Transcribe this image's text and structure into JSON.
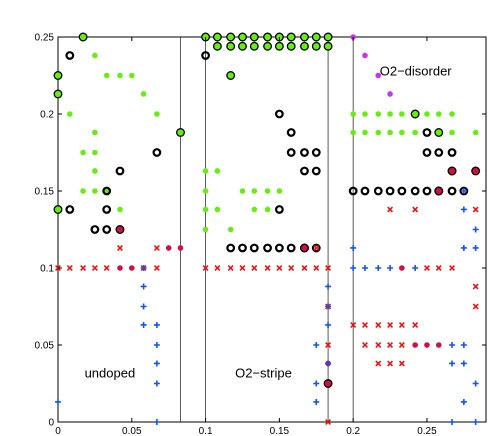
{
  "chart_data": {
    "type": "scatter",
    "title": "",
    "xlabel": "",
    "ylabel": "",
    "xlim": [
      0,
      0.29
    ],
    "ylim": [
      0,
      0.25
    ],
    "grid": false,
    "legend": "none",
    "x_ticks": [
      {
        "value": 0,
        "label": "0"
      },
      {
        "value": 0.05,
        "label": "0.05"
      },
      {
        "value": 0.1,
        "label": "0.1"
      },
      {
        "value": 0.15,
        "label": "0.15"
      },
      {
        "value": 0.2,
        "label": "0.2"
      },
      {
        "value": 0.25,
        "label": "0.25"
      }
    ],
    "y_ticks": [
      {
        "value": 0,
        "label": "0"
      },
      {
        "value": 0.05,
        "label": "0.05"
      },
      {
        "value": 0.1,
        "label": "0.1"
      },
      {
        "value": 0.15,
        "label": "0.15"
      },
      {
        "value": 0.2,
        "label": "0.2"
      },
      {
        "value": 0.25,
        "label": "0.25"
      }
    ],
    "vlines": [
      0.083,
      0.1,
      0.183,
      0.2
    ],
    "annotations": [
      {
        "text": "undoped",
        "x": 0.018,
        "y": 0.029
      },
      {
        "text": "O2−stripe",
        "x": 0.12,
        "y": 0.029
      },
      {
        "text": "O2−disorder",
        "x": 0.218,
        "y": 0.225
      }
    ],
    "colors": {
      "green": "#66ee11",
      "black": "#000000",
      "red": "#ee1111",
      "darkred": "#cc1144",
      "blue": "#1155ee",
      "magenta": "#cc33ee"
    },
    "series": [
      {
        "marker": "filled-circle",
        "color": "green",
        "outlined": true,
        "points": [
          [
            0,
            0.138
          ],
          [
            0,
            0.213
          ],
          [
            0,
            0.225
          ],
          [
            0.017,
            0.25
          ],
          [
            0.083,
            0.188
          ],
          [
            0.1,
            0.25
          ],
          [
            0.108,
            0.25
          ],
          [
            0.117,
            0.25
          ],
          [
            0.125,
            0.25
          ],
          [
            0.133,
            0.25
          ],
          [
            0.142,
            0.25
          ],
          [
            0.15,
            0.25
          ],
          [
            0.158,
            0.25
          ],
          [
            0.167,
            0.25
          ],
          [
            0.175,
            0.25
          ],
          [
            0.183,
            0.25
          ],
          [
            0.108,
            0.244
          ],
          [
            0.117,
            0.244
          ],
          [
            0.125,
            0.244
          ],
          [
            0.133,
            0.244
          ],
          [
            0.142,
            0.244
          ],
          [
            0.15,
            0.244
          ],
          [
            0.158,
            0.244
          ],
          [
            0.167,
            0.244
          ],
          [
            0.175,
            0.244
          ],
          [
            0.183,
            0.244
          ],
          [
            0.117,
            0.225
          ],
          [
            0.242,
            0.2
          ],
          [
            0.258,
            0.188
          ],
          [
            0.258,
            0.15
          ]
        ]
      },
      {
        "marker": "filled-circle",
        "color": "green",
        "outlined": false,
        "points": [
          [
            0.008,
            0.2
          ],
          [
            0.017,
            0.175
          ],
          [
            0.025,
            0.163
          ],
          [
            0.033,
            0.15
          ],
          [
            0.025,
            0.15
          ],
          [
            0.042,
            0.138
          ],
          [
            0.042,
            0.125
          ],
          [
            0.025,
            0.238
          ],
          [
            0.033,
            0.225
          ],
          [
            0.042,
            0.225
          ],
          [
            0.05,
            0.225
          ],
          [
            0.058,
            0.213
          ],
          [
            0.067,
            0.2
          ],
          [
            0.025,
            0.188
          ],
          [
            0.025,
            0.175
          ],
          [
            0.017,
            0.15
          ],
          [
            0.1,
            0.163
          ],
          [
            0.1,
            0.15
          ],
          [
            0.1,
            0.138
          ],
          [
            0.1,
            0.125
          ],
          [
            0.108,
            0.163
          ],
          [
            0.108,
            0.138
          ],
          [
            0.117,
            0.125
          ],
          [
            0.125,
            0.15
          ],
          [
            0.133,
            0.15
          ],
          [
            0.142,
            0.15
          ],
          [
            0.15,
            0.15
          ],
          [
            0.142,
            0.138
          ],
          [
            0.133,
            0.138
          ],
          [
            0.2,
            0.2
          ],
          [
            0.2,
            0.188
          ],
          [
            0.208,
            0.2
          ],
          [
            0.217,
            0.2
          ],
          [
            0.225,
            0.2
          ],
          [
            0.233,
            0.2
          ],
          [
            0.25,
            0.2
          ],
          [
            0.258,
            0.2
          ],
          [
            0.267,
            0.2
          ],
          [
            0.208,
            0.188
          ],
          [
            0.217,
            0.188
          ],
          [
            0.225,
            0.188
          ],
          [
            0.233,
            0.188
          ],
          [
            0.242,
            0.188
          ],
          [
            0.267,
            0.188
          ],
          [
            0.283,
            0.188
          ]
        ]
      },
      {
        "marker": "open-circle",
        "color": "black",
        "points": [
          [
            0.008,
            0.238
          ],
          [
            0.008,
            0.138
          ],
          [
            0.033,
            0.15
          ],
          [
            0.033,
            0.138
          ],
          [
            0.025,
            0.125
          ],
          [
            0.033,
            0.125
          ],
          [
            0.042,
            0.163
          ],
          [
            0.067,
            0.175
          ],
          [
            0.1,
            0.238
          ],
          [
            0.117,
            0.113
          ],
          [
            0.125,
            0.113
          ],
          [
            0.133,
            0.113
          ],
          [
            0.142,
            0.113
          ],
          [
            0.15,
            0.113
          ],
          [
            0.158,
            0.113
          ],
          [
            0.167,
            0.113
          ],
          [
            0.175,
            0.113
          ],
          [
            0.15,
            0.2
          ],
          [
            0.158,
            0.188
          ],
          [
            0.158,
            0.175
          ],
          [
            0.167,
            0.175
          ],
          [
            0.175,
            0.175
          ],
          [
            0.167,
            0.163
          ],
          [
            0.175,
            0.163
          ],
          [
            0.15,
            0.138
          ],
          [
            0.2,
            0.15
          ],
          [
            0.208,
            0.15
          ],
          [
            0.217,
            0.15
          ],
          [
            0.225,
            0.15
          ],
          [
            0.233,
            0.15
          ],
          [
            0.242,
            0.15
          ],
          [
            0.25,
            0.15
          ],
          [
            0.267,
            0.15
          ],
          [
            0.275,
            0.15
          ],
          [
            0.25,
            0.188
          ],
          [
            0.25,
            0.175
          ],
          [
            0.258,
            0.175
          ],
          [
            0.267,
            0.175
          ],
          [
            0.267,
            0.163
          ]
        ]
      },
      {
        "marker": "filled-circle",
        "color": "darkred",
        "outlined": true,
        "points": [
          [
            0.042,
            0.125
          ],
          [
            0.167,
            0.113
          ],
          [
            0.183,
            0.025
          ],
          [
            0.267,
            0.163
          ],
          [
            0.258,
            0.15
          ],
          [
            0.283,
            0.163
          ]
        ]
      },
      {
        "marker": "filled-circle",
        "color": "darkred",
        "outlined": false,
        "points": [
          [
            0.075,
            0.113
          ],
          [
            0.083,
            0.113
          ],
          [
            0.042,
            0.1
          ],
          [
            0.05,
            0.1
          ],
          [
            0.183,
            0.038
          ],
          [
            0.233,
            0.1
          ],
          [
            0.242,
            0.05
          ],
          [
            0.25,
            0.05
          ],
          [
            0.258,
            0.05
          ]
        ]
      },
      {
        "marker": "cross",
        "color": "red",
        "points": [
          [
            0,
            0.1
          ],
          [
            0.008,
            0.1
          ],
          [
            0.017,
            0.1
          ],
          [
            0.025,
            0.1
          ],
          [
            0.033,
            0.1
          ],
          [
            0.058,
            0.1
          ],
          [
            0.067,
            0.1
          ],
          [
            0.042,
            0.113
          ],
          [
            0.067,
            0.113
          ],
          [
            0.1,
            0.1
          ],
          [
            0.108,
            0.1
          ],
          [
            0.117,
            0.1
          ],
          [
            0.125,
            0.1
          ],
          [
            0.133,
            0.1
          ],
          [
            0.142,
            0.1
          ],
          [
            0.15,
            0.1
          ],
          [
            0.158,
            0.1
          ],
          [
            0.167,
            0.1
          ],
          [
            0.175,
            0.1
          ],
          [
            0.183,
            0.1
          ],
          [
            0.175,
            0.113
          ],
          [
            0.183,
            0.075
          ],
          [
            0.183,
            0.05
          ],
          [
            0.183,
            0.0
          ],
          [
            0.25,
            0.1
          ],
          [
            0.258,
            0.1
          ],
          [
            0.267,
            0.1
          ],
          [
            0.225,
            0.138
          ],
          [
            0.242,
            0.138
          ],
          [
            0.283,
            0.138
          ],
          [
            0.283,
            0.088
          ],
          [
            0.283,
            0.075
          ],
          [
            0.2,
            0.063
          ],
          [
            0.208,
            0.063
          ],
          [
            0.217,
            0.063
          ],
          [
            0.225,
            0.063
          ],
          [
            0.233,
            0.063
          ],
          [
            0.208,
            0.05
          ],
          [
            0.217,
            0.05
          ],
          [
            0.225,
            0.05
          ],
          [
            0.233,
            0.05
          ],
          [
            0.217,
            0.038
          ],
          [
            0.225,
            0.038
          ],
          [
            0.233,
            0.038
          ],
          [
            0.242,
            0.063
          ]
        ]
      },
      {
        "marker": "plus",
        "color": "blue",
        "points": [
          [
            0,
            0.013
          ],
          [
            0.058,
            0.1
          ],
          [
            0.058,
            0.088
          ],
          [
            0.058,
            0.075
          ],
          [
            0.058,
            0.063
          ],
          [
            0.067,
            0.063
          ],
          [
            0.067,
            0.05
          ],
          [
            0.067,
            0.038
          ],
          [
            0.067,
            0.025
          ],
          [
            0.067,
            0.0
          ],
          [
            0.183,
            0.088
          ],
          [
            0.183,
            0.075
          ],
          [
            0.183,
            0.063
          ],
          [
            0.175,
            0.05
          ],
          [
            0.183,
            0.038
          ],
          [
            0.175,
            0.025
          ],
          [
            0.175,
            0.013
          ],
          [
            0.2,
            0.113
          ],
          [
            0.2,
            0.1
          ],
          [
            0.208,
            0.1
          ],
          [
            0.217,
            0.1
          ],
          [
            0.225,
            0.1
          ],
          [
            0.242,
            0.1
          ],
          [
            0.275,
            0.15
          ],
          [
            0.275,
            0.138
          ],
          [
            0.283,
            0.125
          ],
          [
            0.283,
            0.113
          ],
          [
            0.275,
            0.113
          ],
          [
            0.275,
            0.05
          ],
          [
            0.267,
            0.05
          ],
          [
            0.275,
            0.038
          ],
          [
            0.267,
            0.038
          ],
          [
            0.283,
            0.025
          ],
          [
            0.275,
            0.013
          ],
          [
            0.283,
            0.0
          ],
          [
            0.267,
            0.0
          ]
        ]
      },
      {
        "marker": "filled-circle",
        "color": "magenta",
        "outlined": false,
        "points": [
          [
            0.2,
            0.25
          ],
          [
            0.208,
            0.238
          ],
          [
            0.217,
            0.225
          ],
          [
            0.225,
            0.213
          ]
        ]
      }
    ]
  }
}
